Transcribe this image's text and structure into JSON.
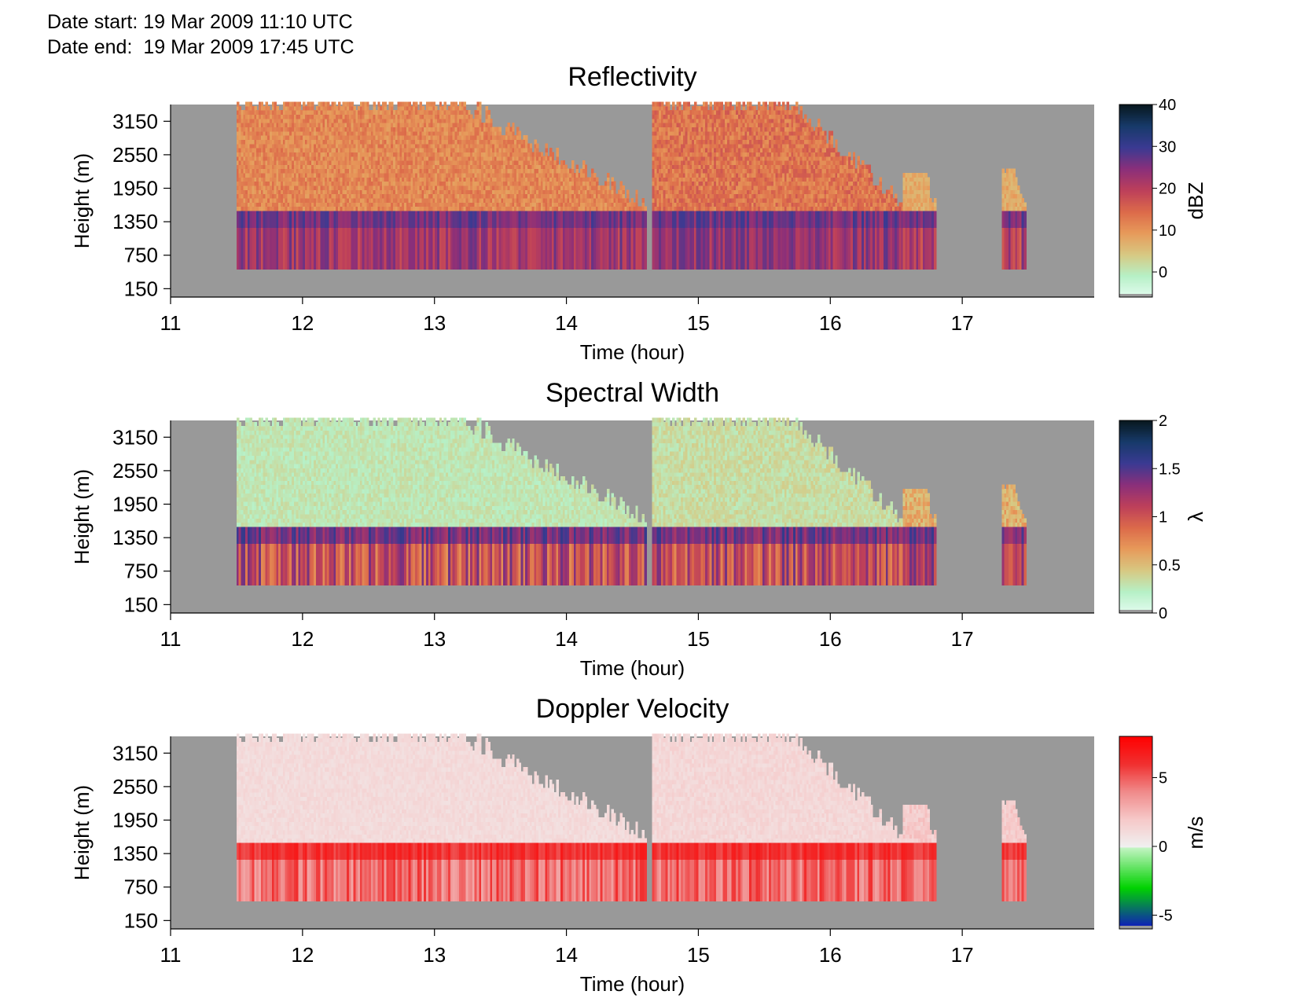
{
  "header": {
    "date_start_label": "Date start:",
    "date_start_value": "19 Mar 2009 11:10 UTC",
    "date_end_label": "Date end:",
    "date_end_value": "19 Mar 2009 17:45 UTC"
  },
  "colors": {
    "missing": "#999999",
    "radar_ramp": [
      "#e4fcf0",
      "#b6f0c6",
      "#d7c882",
      "#e79a5a",
      "#dc6a4a",
      "#bd3f5a",
      "#8a2f7a",
      "#3a3a92",
      "#173a6a",
      "#08181e"
    ],
    "velocity_negative": [
      "#1010c8",
      "#00d200",
      "#c8f5c8"
    ],
    "velocity_positive": [
      "#f0f0f0",
      "#f6c8c8",
      "#f08a8a",
      "#f03030",
      "#ff0000"
    ]
  },
  "chart_data": [
    {
      "type": "heatmap",
      "title": "Reflectivity",
      "xlabel": "Time (hour)",
      "ylabel": "Height (m)",
      "xlim": [
        11,
        18
      ],
      "ylim": [
        0,
        3450
      ],
      "x_ticks": [
        11,
        12,
        13,
        14,
        15,
        16,
        17
      ],
      "y_ticks": [
        150,
        750,
        1350,
        1950,
        2550,
        3150
      ],
      "colorbar": {
        "label": "dBZ",
        "range": [
          -6,
          40
        ],
        "ticks": [
          0,
          10,
          20,
          30,
          40
        ]
      },
      "echo_regions": [
        {
          "t_start": 11.5,
          "t_end": 14.6,
          "base_m": 500,
          "top_m": 3450,
          "typical": 12
        },
        {
          "t_start": 14.65,
          "t_end": 16.55,
          "base_m": 500,
          "top_m": 3450,
          "typical": 14
        },
        {
          "t_start": 16.55,
          "t_end": 16.8,
          "base_m": 500,
          "top_m": 2200,
          "typical": 8
        },
        {
          "t_start": 17.3,
          "t_end": 17.47,
          "base_m": 500,
          "top_m": 2300,
          "typical": 8
        }
      ],
      "bright_band_m": 1350,
      "max_value": 30
    },
    {
      "type": "heatmap",
      "title": "Spectral Width",
      "xlabel": "Time (hour)",
      "ylabel": "Height (m)",
      "xlim": [
        11,
        18
      ],
      "ylim": [
        0,
        3450
      ],
      "x_ticks": [
        11,
        12,
        13,
        14,
        15,
        16,
        17
      ],
      "y_ticks": [
        150,
        750,
        1350,
        1950,
        2550,
        3150
      ],
      "colorbar": {
        "label": "λ",
        "range": [
          0,
          2
        ],
        "ticks": [
          0,
          0.5,
          1,
          1.5,
          2
        ]
      },
      "echo_regions": [
        {
          "t_start": 11.5,
          "t_end": 14.6,
          "base_m": 500,
          "top_m": 3450,
          "typical": 0.3
        },
        {
          "t_start": 14.65,
          "t_end": 16.55,
          "base_m": 500,
          "top_m": 3450,
          "typical": 0.35
        },
        {
          "t_start": 16.55,
          "t_end": 16.8,
          "base_m": 500,
          "top_m": 2200,
          "typical": 0.6
        },
        {
          "t_start": 17.3,
          "t_end": 17.47,
          "base_m": 500,
          "top_m": 2300,
          "typical": 0.6
        }
      ],
      "bright_band_m": 1350,
      "max_value": 1.6
    },
    {
      "type": "heatmap",
      "title": "Doppler Velocity",
      "xlabel": "Time (hour)",
      "ylabel": "Height (m)",
      "xlim": [
        11,
        18
      ],
      "ylim": [
        0,
        3450
      ],
      "x_ticks": [
        11,
        12,
        13,
        14,
        15,
        16,
        17
      ],
      "y_ticks": [
        150,
        750,
        1350,
        1950,
        2550,
        3150
      ],
      "colorbar": {
        "label": "m/s",
        "range": [
          -6,
          8
        ],
        "ticks": [
          -5,
          0,
          5
        ]
      },
      "echo_regions": [
        {
          "t_start": 11.5,
          "t_end": 14.6,
          "base_m": 500,
          "top_m": 3450,
          "typical": 1.2
        },
        {
          "t_start": 14.65,
          "t_end": 16.55,
          "base_m": 500,
          "top_m": 3450,
          "typical": 1.4
        },
        {
          "t_start": 16.55,
          "t_end": 16.8,
          "base_m": 500,
          "top_m": 2200,
          "typical": 2
        },
        {
          "t_start": 17.3,
          "t_end": 17.47,
          "base_m": 500,
          "top_m": 2300,
          "typical": 2
        }
      ],
      "bright_band_m": 1350,
      "max_value": 7
    }
  ]
}
